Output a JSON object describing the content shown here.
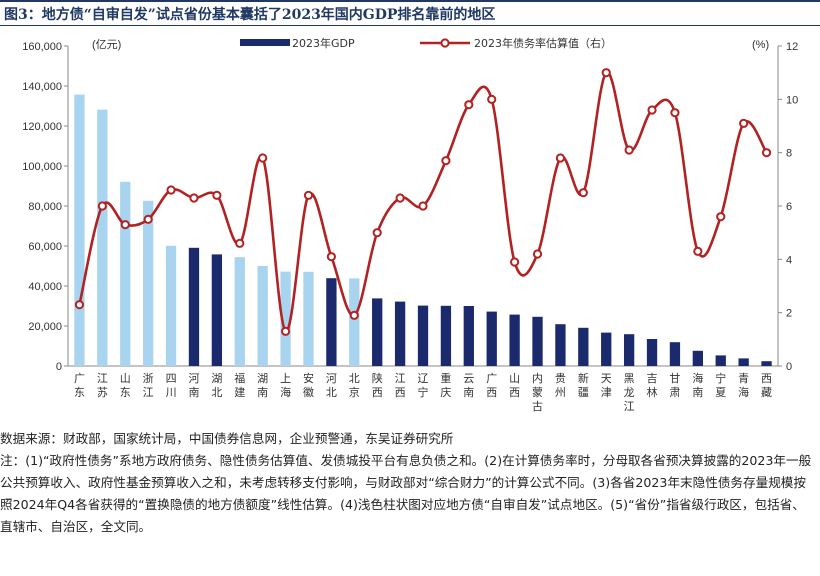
{
  "figure": {
    "title": "图3：地方债“自审自发”试点省份基本囊括了2023年国内GDP排名靠前的地区"
  },
  "chart_data": {
    "type": "bar+line",
    "title": "",
    "y_left": {
      "unit_label": "(亿元)",
      "ylim": [
        0,
        160000
      ],
      "ticks": [
        "0",
        "20,000",
        "40,000",
        "60,000",
        "80,000",
        "100,000",
        "120,000",
        "140,000",
        "160,000"
      ]
    },
    "y_right": {
      "unit_label": "(%)",
      "ylim": [
        0,
        12
      ],
      "ticks": [
        "0",
        "2",
        "4",
        "6",
        "8",
        "10",
        "12"
      ]
    },
    "legend": {
      "placement": "top",
      "bar_label": "2023年GDP",
      "line_label": "2023年债务率估算值（右）"
    },
    "colors": {
      "pilot": "#a9d4f0",
      "other": "#1a2a6c",
      "line": "#b22222",
      "marker_fill": "#ffffff"
    },
    "categories": [
      "广东",
      "江苏",
      "山东",
      "浙江",
      "四川",
      "河南",
      "湖北",
      "福建",
      "湖南",
      "上海",
      "安徽",
      "河北",
      "北京",
      "陕西",
      "江西",
      "辽宁",
      "重庆",
      "云南",
      "广西",
      "山西",
      "内蒙古",
      "贵州",
      "新疆",
      "天津",
      "黑龙江",
      "吉林",
      "甘肃",
      "海南",
      "宁夏",
      "青海",
      "西藏"
    ],
    "gdp": [
      135700,
      128200,
      92100,
      82600,
      60100,
      59100,
      55800,
      54400,
      50000,
      47200,
      47100,
      43900,
      43800,
      33800,
      32200,
      30200,
      30100,
      30000,
      27200,
      25700,
      24600,
      20900,
      19100,
      16700,
      15900,
      13500,
      11900,
      7600,
      5300,
      3800,
      2400
    ],
    "pilot": [
      true,
      true,
      true,
      true,
      true,
      false,
      false,
      true,
      true,
      true,
      true,
      false,
      true,
      false,
      false,
      false,
      false,
      false,
      false,
      false,
      false,
      false,
      false,
      false,
      false,
      false,
      false,
      false,
      false,
      false,
      false
    ],
    "debt_ratio": [
      2.3,
      6.0,
      5.3,
      5.5,
      6.6,
      6.3,
      6.4,
      4.6,
      7.8,
      1.3,
      6.4,
      4.1,
      1.9,
      5.0,
      6.3,
      6.0,
      7.7,
      9.8,
      10.0,
      3.9,
      4.2,
      7.8,
      6.5,
      11.0,
      8.1,
      9.6,
      9.5,
      4.3,
      5.6,
      9.1,
      8.0
    ]
  },
  "notes": {
    "source": "数据来源：财政部，国家统计局，中国债券信息网，企业预警通，东吴证券研究所",
    "note": "注：(1)“政府性债务”系地方政府债务、隐性债务估算值、发债城投平台有息负债之和。(2)在计算债务率时，分母取各省预决算披露的2023年一般公共预算收入、政府性基金预算收入之和，未考虑转移支付影响，与财政部对“综合财力”的计算公式不同。(3)各省2023年末隐性债务存量规模按照2024年Q4各省获得的“置换隐债的地方债额度”线性估算。(4)浅色柱状图对应地方债“自审自发”试点地区。(5)“省份”指省级行政区，包括省、直辖市、自治区，全文同。"
  }
}
